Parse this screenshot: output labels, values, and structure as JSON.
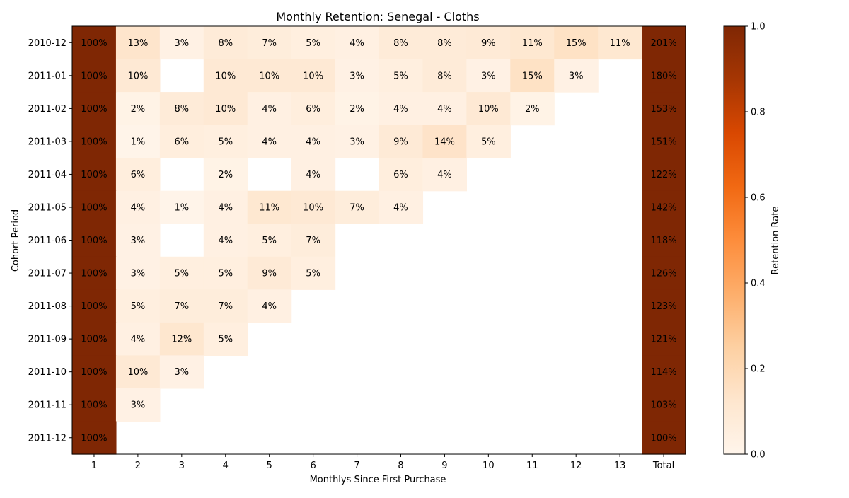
{
  "chart_data": {
    "type": "heatmap",
    "title": "Monthly Retention: Senegal - Cloths",
    "xlabel": "Monthlys Since First Purchase",
    "ylabel": "Cohort Period",
    "x_labels": [
      "1",
      "2",
      "3",
      "4",
      "5",
      "6",
      "7",
      "8",
      "9",
      "10",
      "11",
      "12",
      "13",
      "Total"
    ],
    "y_labels": [
      "2010-12",
      "2011-01",
      "2011-02",
      "2011-03",
      "2011-04",
      "2011-05",
      "2011-06",
      "2011-07",
      "2011-08",
      "2011-09",
      "2011-10",
      "2011-11",
      "2011-12"
    ],
    "values": [
      [
        1.0,
        0.13,
        0.03,
        0.08,
        0.07,
        0.05,
        0.04,
        0.08,
        0.08,
        0.09,
        0.11,
        0.15,
        0.11,
        2.01
      ],
      [
        1.0,
        0.1,
        null,
        0.1,
        0.1,
        0.1,
        0.03,
        0.05,
        0.08,
        0.03,
        0.15,
        0.03,
        null,
        1.8
      ],
      [
        1.0,
        0.02,
        0.08,
        0.1,
        0.04,
        0.06,
        0.02,
        0.04,
        0.04,
        0.1,
        0.02,
        null,
        null,
        1.53
      ],
      [
        1.0,
        0.01,
        0.06,
        0.05,
        0.04,
        0.04,
        0.03,
        0.09,
        0.14,
        0.05,
        null,
        null,
        null,
        1.51
      ],
      [
        1.0,
        0.06,
        null,
        0.02,
        null,
        0.04,
        null,
        0.06,
        0.04,
        null,
        null,
        null,
        null,
        1.22
      ],
      [
        1.0,
        0.04,
        0.01,
        0.04,
        0.11,
        0.1,
        0.07,
        0.04,
        null,
        null,
        null,
        null,
        null,
        1.42
      ],
      [
        1.0,
        0.03,
        null,
        0.04,
        0.05,
        0.07,
        null,
        null,
        null,
        null,
        null,
        null,
        null,
        1.18
      ],
      [
        1.0,
        0.03,
        0.05,
        0.05,
        0.09,
        0.05,
        null,
        null,
        null,
        null,
        null,
        null,
        null,
        1.26
      ],
      [
        1.0,
        0.05,
        0.07,
        0.07,
        0.04,
        null,
        null,
        null,
        null,
        null,
        null,
        null,
        null,
        1.23
      ],
      [
        1.0,
        0.04,
        0.12,
        0.05,
        null,
        null,
        null,
        null,
        null,
        null,
        null,
        null,
        null,
        1.21
      ],
      [
        1.0,
        0.1,
        0.03,
        null,
        null,
        null,
        null,
        null,
        null,
        null,
        null,
        null,
        null,
        1.14
      ],
      [
        1.0,
        0.03,
        null,
        null,
        null,
        null,
        null,
        null,
        null,
        null,
        null,
        null,
        null,
        1.03
      ],
      [
        1.0,
        null,
        null,
        null,
        null,
        null,
        null,
        null,
        null,
        null,
        null,
        null,
        null,
        1.0
      ]
    ],
    "colorbar": {
      "label": "Retention Rate",
      "range": [
        0,
        1
      ],
      "ticks": [
        "0.0",
        "0.2",
        "0.4",
        "0.6",
        "0.8",
        "1.0"
      ],
      "colormap": "Oranges"
    }
  }
}
